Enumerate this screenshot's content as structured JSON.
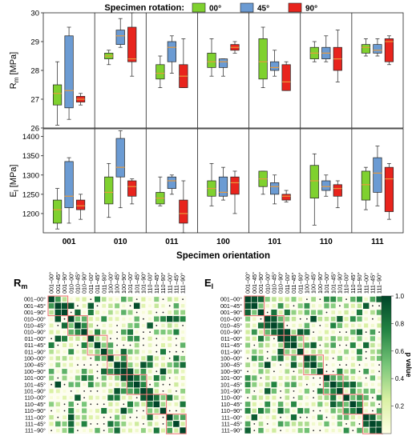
{
  "chart_data": [
    {
      "type": "box",
      "legend": {
        "title": "Specimen rotation:",
        "placement": "top",
        "entries": [
          "00°",
          "45°",
          "90°"
        ]
      },
      "colors": [
        "#7fd12f",
        "#6b9bd3",
        "#e8241d"
      ],
      "median_color": "#e89a3c",
      "categories": [
        "001",
        "010",
        "011",
        "100",
        "101",
        "110",
        "111"
      ],
      "xlabel": "Specimen orientation",
      "panels": [
        {
          "ylabel_main": "R",
          "ylabel_sub": "m",
          "ylabel_unit": " [MPa]",
          "ylim": [
            26,
            30
          ],
          "yticks": [
            "26",
            "27",
            "28",
            "29",
            "30"
          ],
          "series": [
            {
              "name": "00°",
              "stats": [
                [
                  26.1,
                  26.8,
                  27.2,
                  27.5,
                  28.3
                ],
                [
                  28.2,
                  28.4,
                  28.5,
                  28.6,
                  28.7
                ],
                [
                  27.4,
                  27.7,
                  27.9,
                  28.2,
                  28.5
                ],
                [
                  27.8,
                  28.1,
                  28.3,
                  28.6,
                  29.1
                ],
                [
                  27.4,
                  27.7,
                  28.3,
                  29.1,
                  29.5
                ],
                [
                  28.3,
                  28.4,
                  28.6,
                  28.8,
                  29.0
                ],
                [
                  28.5,
                  28.6,
                  28.8,
                  28.9,
                  29.1
                ]
              ]
            },
            {
              "name": "45°",
              "stats": [
                [
                  26.3,
                  26.7,
                  27.3,
                  29.2,
                  29.5
                ],
                [
                  28.8,
                  28.9,
                  29.2,
                  29.4,
                  29.8
                ],
                [
                  27.9,
                  28.3,
                  28.8,
                  29.0,
                  29.2
                ],
                [
                  27.8,
                  28.1,
                  28.3,
                  28.4,
                  28.4
                ],
                [
                  27.8,
                  28.0,
                  28.1,
                  28.3,
                  28.7
                ],
                [
                  28.3,
                  28.4,
                  28.6,
                  28.8,
                  29.2
                ],
                [
                  28.5,
                  28.6,
                  28.7,
                  28.9,
                  29.1
                ]
              ]
            },
            {
              "name": "90°",
              "stats": [
                [
                  26.8,
                  26.9,
                  27.0,
                  27.1,
                  27.2
                ],
                [
                  27.8,
                  28.3,
                  28.4,
                  29.5,
                  30.0
                ],
                [
                  27.4,
                  27.4,
                  27.8,
                  28.2,
                  29.1
                ],
                [
                  28.6,
                  28.7,
                  28.8,
                  28.9,
                  29.0
                ],
                [
                  27.3,
                  27.3,
                  27.6,
                  28.2,
                  28.3
                ],
                [
                  27.6,
                  28.0,
                  28.4,
                  28.8,
                  29.4
                ],
                [
                  28.2,
                  28.3,
                  29.0,
                  29.1,
                  29.2
                ]
              ]
            }
          ]
        },
        {
          "ylabel_main": "E",
          "ylabel_sub": "l",
          "ylabel_unit": " [MPa]",
          "ylim": [
            1150,
            1420
          ],
          "yticks": [
            "1200",
            "1250",
            "1300",
            "1350",
            "1400"
          ],
          "series": [
            {
              "name": "00°",
              "stats": [
                [
                  1160,
                  1175,
                  1210,
                  1235,
                  1265
                ],
                [
                  1190,
                  1225,
                  1255,
                  1295,
                  1330
                ],
                [
                  1220,
                  1225,
                  1240,
                  1255,
                  1295
                ],
                [
                  1220,
                  1245,
                  1265,
                  1285,
                  1330
                ],
                [
                  1250,
                  1270,
                  1290,
                  1310,
                  1310
                ],
                [
                  1170,
                  1240,
                  1285,
                  1325,
                  1355
                ],
                [
                  1210,
                  1235,
                  1275,
                  1310,
                  1320
                ]
              ]
            },
            {
              "name": "45°",
              "stats": [
                [
                  1175,
                  1215,
                  1245,
                  1335,
                  1345
                ],
                [
                  1215,
                  1295,
                  1320,
                  1395,
                  1415
                ],
                [
                  1250,
                  1265,
                  1285,
                  1295,
                  1300
                ],
                [
                  1235,
                  1245,
                  1255,
                  1295,
                  1320
                ],
                [
                  1225,
                  1250,
                  1270,
                  1280,
                  1300
                ],
                [
                  1245,
                  1260,
                  1270,
                  1285,
                  1300
                ],
                [
                  1220,
                  1255,
                  1305,
                  1345,
                  1375
                ]
              ]
            },
            {
              "name": "90°",
              "stats": [
                [
                  1185,
                  1210,
                  1220,
                  1235,
                  1250
                ],
                [
                  1225,
                  1245,
                  1270,
                  1285,
                  1290
                ],
                [
                  1150,
                  1175,
                  1200,
                  1235,
                  1285
                ],
                [
                  1200,
                  1250,
                  1280,
                  1295,
                  1310
                ],
                [
                  1230,
                  1235,
                  1245,
                  1250,
                  1260
                ],
                [
                  1215,
                  1245,
                  1265,
                  1275,
                  1285
                ],
                [
                  1185,
                  1205,
                  1290,
                  1320,
                  1330
                ]
              ]
            }
          ]
        }
      ]
    },
    {
      "type": "heatmap",
      "colorbar": {
        "label": "p value",
        "range": [
          0,
          1
        ],
        "ticks": [
          "0.2",
          "0.4",
          "0.6",
          "0.8",
          "1.0"
        ],
        "colors": [
          "#ffffe5",
          "#d9f0a3",
          "#78c679",
          "#238443",
          "#004529"
        ]
      },
      "row_labels": [
        "001−00°",
        "001−45°",
        "001−90°",
        "010−00°",
        "010−45°",
        "010−90°",
        "011−00°",
        "011−45°",
        "011−90°",
        "100−00°",
        "100−45°",
        "100−90°",
        "101−00°",
        "101−45°",
        "101−90°",
        "110−00°",
        "110−45°",
        "110−90°",
        "111−00°",
        "111−45°",
        "111−90°"
      ],
      "panels": [
        {
          "label_main": "R",
          "label_sub": "m",
          "seed": 7
        },
        {
          "label_main": "E",
          "label_sub": "l",
          "seed": 23
        }
      ]
    }
  ]
}
